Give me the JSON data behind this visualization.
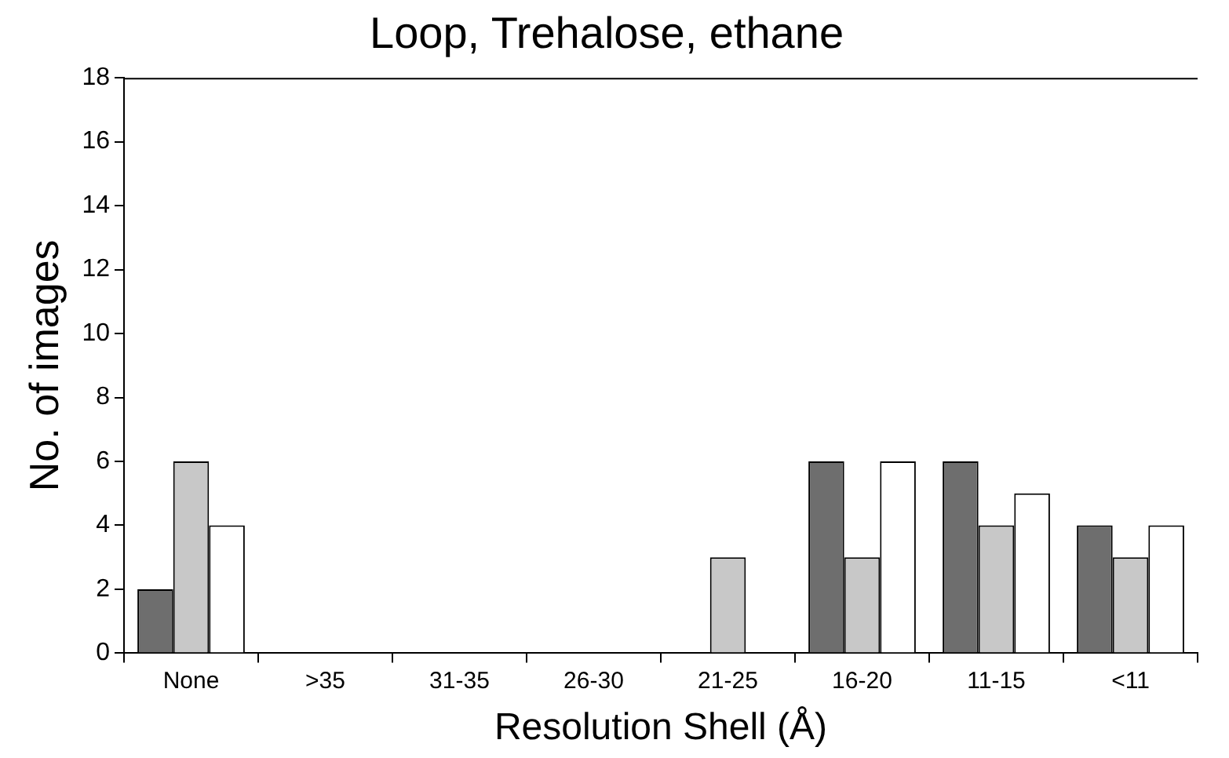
{
  "chart_data": {
    "type": "bar",
    "title": "Loop, Trehalose, ethane",
    "xlabel": "Resolution Shell (Å)",
    "ylabel": "No. of images",
    "categories": [
      "None",
      ">35",
      "31-35",
      "26-30",
      "21-25",
      "16-20",
      "11-15",
      "<11"
    ],
    "series": [
      {
        "color": "#6e6e6e",
        "values": [
          2,
          0,
          0,
          0,
          0,
          6,
          6,
          4
        ]
      },
      {
        "color": "#c8c8c8",
        "values": [
          6,
          0,
          0,
          0,
          3,
          3,
          4,
          3
        ]
      },
      {
        "color": "#ffffff",
        "values": [
          4,
          0,
          0,
          0,
          0,
          6,
          5,
          4
        ]
      }
    ],
    "ylim": [
      0,
      18
    ],
    "yticks": [
      0,
      2,
      4,
      6,
      8,
      10,
      12,
      14,
      16,
      18
    ],
    "grid": false,
    "legend": false
  }
}
